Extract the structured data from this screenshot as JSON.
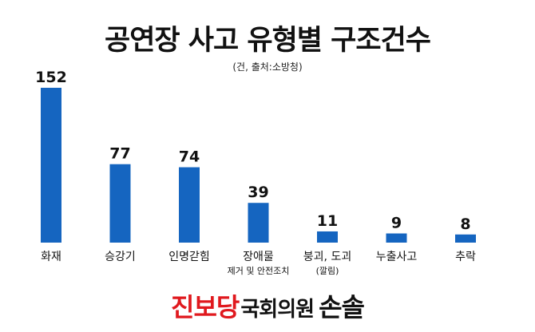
{
  "title": "공연장 사고 유형별 구조건수",
  "subtitle": "(건, 출처:소방청)",
  "footer": {
    "party": "진보당",
    "role": "국회의원",
    "name": "손솔"
  },
  "colors": {
    "bar": "#1565c0",
    "brand": "#e0191e"
  },
  "chart_data": {
    "type": "bar",
    "title": "공연장 사고 유형별 구조건수",
    "subtitle": "(건, 출처:소방청)",
    "categories": [
      [
        "화재"
      ],
      [
        "승강기"
      ],
      [
        "인명갇힘"
      ],
      [
        "장애물",
        "제거 및 안전조치"
      ],
      [
        "붕괴, 도괴",
        "(깔림)"
      ],
      [
        "누출사고"
      ],
      [
        "추락"
      ]
    ],
    "values": [
      152,
      77,
      74,
      39,
      11,
      9,
      8
    ],
    "ylim": [
      0,
      152
    ],
    "grid": false,
    "legend": "none"
  }
}
